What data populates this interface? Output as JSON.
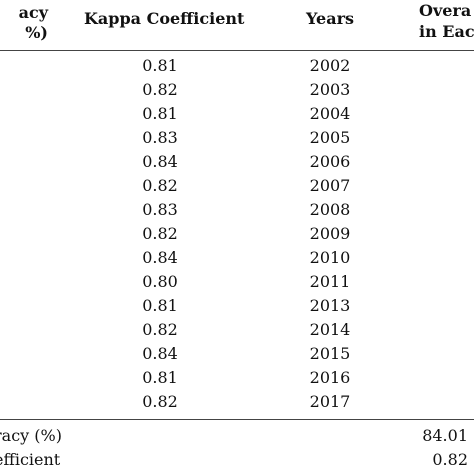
{
  "headers": {
    "col1_line1": "acy",
    "col1_line2": "%)",
    "kappa": "Kappa Coefficient",
    "years": "Years",
    "overall_line1": "Overa",
    "overall_line2": "in Eac"
  },
  "rows": [
    {
      "kappa": "0.81",
      "year": "2002"
    },
    {
      "kappa": "0.82",
      "year": "2003"
    },
    {
      "kappa": "0.81",
      "year": "2004"
    },
    {
      "kappa": "0.83",
      "year": "2005"
    },
    {
      "kappa": "0.84",
      "year": "2006"
    },
    {
      "kappa": "0.82",
      "year": "2007"
    },
    {
      "kappa": "0.83",
      "year": "2008"
    },
    {
      "kappa": "0.82",
      "year": "2009"
    },
    {
      "kappa": "0.84",
      "year": "2010"
    },
    {
      "kappa": "0.80",
      "year": "2011"
    },
    {
      "kappa": "0.81",
      "year": "2013"
    },
    {
      "kappa": "0.82",
      "year": "2014"
    },
    {
      "kappa": "0.84",
      "year": "2015"
    },
    {
      "kappa": "0.81",
      "year": "2016"
    },
    {
      "kappa": "0.82",
      "year": "2017"
    }
  ],
  "summary": [
    {
      "label": "racy (%)",
      "value": "84.01"
    },
    {
      "label": "efficient",
      "value": "0.82"
    }
  ]
}
